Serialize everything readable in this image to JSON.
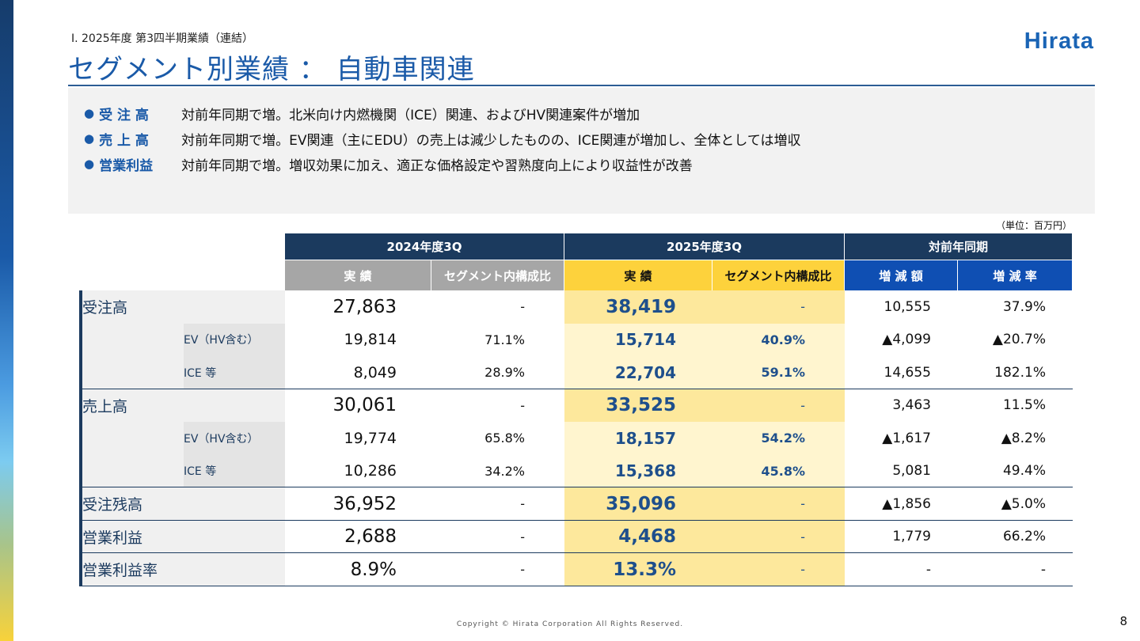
{
  "header": {
    "section": "Ⅰ. 2025年度 第3四半期業績（連結）",
    "title": "セグメント別業績 ： 自動車関連",
    "logo": "Hirata"
  },
  "summary": [
    {
      "key": "受 注 高",
      "text": "対前年同期で増。北米向け内燃機関（ICE）関連、およびHV関連案件が増加"
    },
    {
      "key": "売 上 高",
      "text": "対前年同期で増。EV関連（主にEDU）の売上は減少したものの、ICE関連が増加し、全体としては増収"
    },
    {
      "key": "営業利益",
      "text": "対前年同期で増。増収効果に加え、適正な価格設定や習熟度向上により収益性が改善"
    }
  ],
  "unit": "（単位：百万円）",
  "table": {
    "groups": [
      "2024年度3Q",
      "2025年度3Q",
      "対前年同期"
    ],
    "columns": [
      "実 績",
      "セグメント内構成比",
      "実 績",
      "セグメント内構成比",
      "増 減 額",
      "増 減 率"
    ],
    "rows": [
      {
        "label": "受注高",
        "sub": "",
        "main": true,
        "values": [
          "27,863",
          "-",
          "38,419",
          "-",
          "10,555",
          "37.9%"
        ]
      },
      {
        "label": "",
        "sub": "EV（HV含む）",
        "main": false,
        "values": [
          "19,814",
          "71.1%",
          "15,714",
          "40.9%",
          "▲4,099",
          "▲20.7%"
        ]
      },
      {
        "label": "",
        "sub": "ICE 等",
        "main": false,
        "values": [
          "8,049",
          "28.9%",
          "22,704",
          "59.1%",
          "14,655",
          "182.1%"
        ]
      },
      {
        "label": "売上高",
        "sub": "",
        "main": true,
        "values": [
          "30,061",
          "-",
          "33,525",
          "-",
          "3,463",
          "11.5%"
        ]
      },
      {
        "label": "",
        "sub": "EV（HV含む）",
        "main": false,
        "values": [
          "19,774",
          "65.8%",
          "18,157",
          "54.2%",
          "▲1,617",
          "▲8.2%"
        ]
      },
      {
        "label": "",
        "sub": "ICE 等",
        "main": false,
        "values": [
          "10,286",
          "34.2%",
          "15,368",
          "45.8%",
          "5,081",
          "49.4%"
        ]
      },
      {
        "label": "受注残高",
        "sub": "",
        "main": true,
        "values": [
          "36,952",
          "-",
          "35,096",
          "-",
          "▲1,856",
          "▲5.0%"
        ]
      },
      {
        "label": "営業利益",
        "sub": "",
        "main": true,
        "values": [
          "2,688",
          "-",
          "4,468",
          "-",
          "1,779",
          "66.2%"
        ]
      },
      {
        "label": "営業利益率",
        "sub": "",
        "main": true,
        "values": [
          "8.9%",
          "-",
          "13.3%",
          "-",
          "-",
          "-"
        ]
      }
    ]
  },
  "colors": {
    "navy": "#1b3a5e",
    "brand": "#1a5aa8",
    "gray": "#a6a6a6",
    "yellow": "#fdd23c",
    "blue": "#0f4fb3"
  },
  "footer": {
    "copyright": "Copyright © Hirata Corporation All Rights Reserved.",
    "page": "8"
  }
}
